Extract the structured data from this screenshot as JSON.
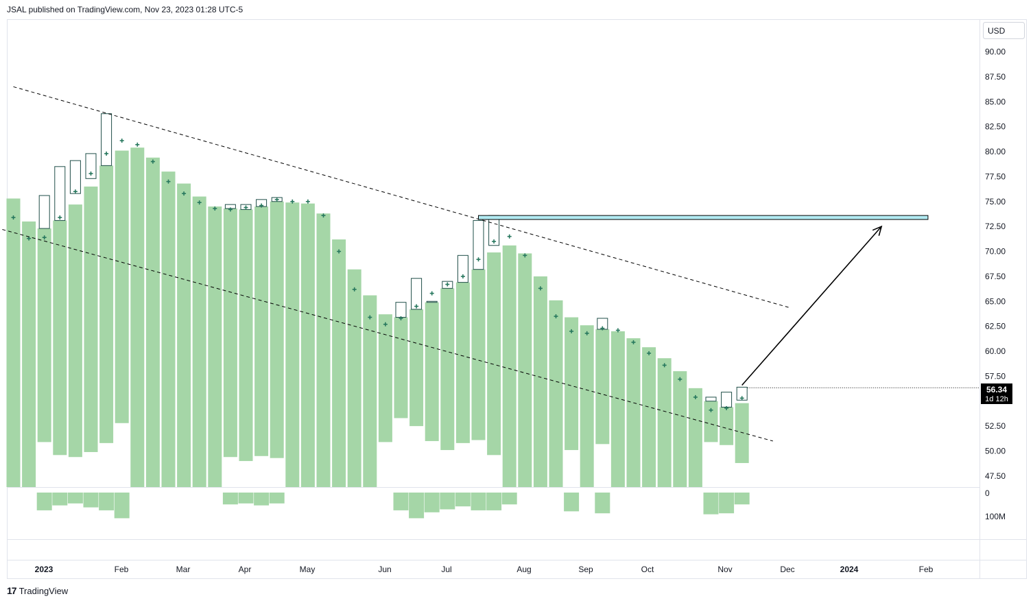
{
  "header": {
    "published": "JSAL published on TradingView.com, Nov 23, 2023 01:28 UTC-5"
  },
  "footer": {
    "logo_mark": "17",
    "logo_text": "TradingView"
  },
  "price_axis": {
    "currency": "USD",
    "ticks": [
      "90.00",
      "87.50",
      "85.00",
      "82.50",
      "80.00",
      "77.50",
      "75.00",
      "72.50",
      "70.00",
      "67.50",
      "65.00",
      "62.50",
      "60.00",
      "57.50",
      "55.00",
      "52.50",
      "50.00",
      "47.50"
    ],
    "last_price": "56.34",
    "countdown": "1d 12h"
  },
  "volume_axis": {
    "ticks": [
      "0",
      "100M"
    ]
  },
  "time_axis": {
    "labels": [
      "2023",
      "Feb",
      "Mar",
      "Apr",
      "May",
      "Jun",
      "Jul",
      "Aug",
      "Sep",
      "Oct",
      "Nov",
      "Dec",
      "2024",
      "Feb"
    ],
    "bold": [
      "2023",
      "2024"
    ]
  },
  "colors": {
    "bar": "#a5d6a7",
    "marker": "#26775d",
    "candle_outline": "#1e4d47",
    "zone_fill": "#b2ebf2",
    "line": "#000000"
  },
  "chart_data": {
    "type": "bar",
    "timeframe": "weekly",
    "ylim": [
      46.0,
      92.0
    ],
    "weeks": [
      {
        "date": "2023-01-02",
        "top": 75.3,
        "bottom": 46.0,
        "marker": 73.4,
        "vol": 0
      },
      {
        "date": "2023-01-09",
        "top": 73.0,
        "bottom": 46.0,
        "marker": 71.3,
        "vol": 0
      },
      {
        "date": "2023-01-16",
        "top": 72.3,
        "bottom": 50.9,
        "marker": 71.4,
        "vol": 18,
        "cHigh": 75.6,
        "cLow": 72.3
      },
      {
        "date": "2023-01-23",
        "top": 73.1,
        "bottom": 49.6,
        "marker": 73.4,
        "vol": 13,
        "cHigh": 78.5,
        "cLow": 73.1
      },
      {
        "date": "2023-01-30",
        "top": 74.7,
        "bottom": 49.4,
        "marker": 76.0,
        "vol": 11,
        "cHigh": 79.1,
        "cLow": 75.8
      },
      {
        "date": "2023-02-06",
        "top": 76.5,
        "bottom": 49.9,
        "marker": 77.8,
        "vol": 15,
        "cHigh": 79.8,
        "cLow": 77.3
      },
      {
        "date": "2023-02-13",
        "top": 78.6,
        "bottom": 50.8,
        "marker": 79.8,
        "vol": 18,
        "cHigh": 83.8,
        "cLow": 78.6
      },
      {
        "date": "2023-02-20",
        "top": 80.1,
        "bottom": 52.8,
        "marker": 81.1,
        "vol": 26
      },
      {
        "date": "2023-02-27",
        "top": 80.4,
        "bottom": 46.0,
        "marker": 80.7,
        "vol": 0
      },
      {
        "date": "2023-03-06",
        "top": 79.4,
        "bottom": 46.0,
        "marker": 79.0,
        "vol": 0
      },
      {
        "date": "2023-03-13",
        "top": 78.0,
        "bottom": 46.0,
        "marker": 77.0,
        "vol": 0
      },
      {
        "date": "2023-03-20",
        "top": 76.8,
        "bottom": 46.0,
        "marker": 75.8,
        "vol": 0
      },
      {
        "date": "2023-03-27",
        "top": 75.5,
        "bottom": 46.0,
        "marker": 74.9,
        "vol": 0
      },
      {
        "date": "2023-04-03",
        "top": 74.5,
        "bottom": 46.0,
        "marker": 74.3,
        "vol": 0
      },
      {
        "date": "2023-04-10",
        "top": 74.3,
        "bottom": 49.4,
        "marker": 74.2,
        "vol": 12,
        "cHigh": 74.7,
        "cLow": 74.3
      },
      {
        "date": "2023-04-17",
        "top": 74.2,
        "bottom": 49.0,
        "marker": 74.4,
        "vol": 11,
        "cHigh": 74.7,
        "cLow": 74.2
      },
      {
        "date": "2023-04-24",
        "top": 74.5,
        "bottom": 49.5,
        "marker": 74.6,
        "vol": 13,
        "cHigh": 75.2,
        "cLow": 74.5
      },
      {
        "date": "2023-05-01",
        "top": 75.0,
        "bottom": 49.3,
        "marker": 75.2,
        "vol": 11,
        "cHigh": 75.4,
        "cLow": 75.0
      },
      {
        "date": "2023-05-08",
        "top": 74.9,
        "bottom": 46.0,
        "marker": 75.0,
        "vol": 0
      },
      {
        "date": "2023-05-15",
        "top": 74.8,
        "bottom": 46.0,
        "marker": 75.0,
        "vol": 0
      },
      {
        "date": "2023-05-22",
        "top": 73.8,
        "bottom": 46.0,
        "marker": 73.6,
        "vol": 0
      },
      {
        "date": "2023-05-29",
        "top": 71.2,
        "bottom": 46.0,
        "marker": 70.0,
        "vol": 0
      },
      {
        "date": "2023-06-05",
        "top": 68.2,
        "bottom": 46.0,
        "marker": 66.2,
        "vol": 0
      },
      {
        "date": "2023-06-12",
        "top": 65.6,
        "bottom": 46.0,
        "marker": 63.4,
        "vol": 0
      },
      {
        "date": "2023-06-19",
        "top": 63.7,
        "bottom": 50.9,
        "marker": 62.7,
        "vol": 0
      },
      {
        "date": "2023-06-26",
        "top": 63.4,
        "bottom": 53.3,
        "marker": 63.3,
        "vol": 18,
        "cHigh": 64.9,
        "cLow": 63.4
      },
      {
        "date": "2023-07-03",
        "top": 64.2,
        "bottom": 52.5,
        "marker": 64.5,
        "vol": 26,
        "cHigh": 67.3,
        "cLow": 64.2
      },
      {
        "date": "2023-07-10",
        "top": 64.9,
        "bottom": 51.0,
        "marker": 65.8,
        "vol": 20,
        "cHigh": 65.0,
        "cLow": 64.9
      },
      {
        "date": "2023-07-17",
        "top": 66.3,
        "bottom": 50.1,
        "marker": 66.7,
        "vol": 17,
        "cHigh": 67.0,
        "cLow": 66.3
      },
      {
        "date": "2023-07-24",
        "top": 66.9,
        "bottom": 50.8,
        "marker": 67.5,
        "vol": 14,
        "cHigh": 69.6,
        "cLow": 66.9
      },
      {
        "date": "2023-07-31",
        "top": 68.2,
        "bottom": 51.1,
        "marker": 69.2,
        "vol": 18,
        "cHigh": 73.1,
        "cLow": 68.2
      },
      {
        "date": "2023-08-07",
        "top": 69.9,
        "bottom": 49.6,
        "marker": 71.0,
        "vol": 18,
        "cHigh": 73.6,
        "cLow": 70.6
      },
      {
        "date": "2023-08-14",
        "top": 70.6,
        "bottom": 46.0,
        "marker": 71.5,
        "vol": 12
      },
      {
        "date": "2023-08-21",
        "top": 69.8,
        "bottom": 46.0,
        "marker": 69.6,
        "vol": 0
      },
      {
        "date": "2023-08-28",
        "top": 67.5,
        "bottom": 46.0,
        "marker": 66.3,
        "vol": 0
      },
      {
        "date": "2023-09-04",
        "top": 65.1,
        "bottom": 46.0,
        "marker": 63.5,
        "vol": 0
      },
      {
        "date": "2023-09-11",
        "top": 63.4,
        "bottom": 50.1,
        "marker": 62.0,
        "vol": 19
      },
      {
        "date": "2023-09-18",
        "top": 62.6,
        "bottom": 46.0,
        "marker": 61.8,
        "vol": 0
      },
      {
        "date": "2023-09-25",
        "top": 62.2,
        "bottom": 50.7,
        "marker": 62.3,
        "vol": 21,
        "cHigh": 63.3,
        "cLow": 62.2
      },
      {
        "date": "2023-10-02",
        "top": 62.0,
        "bottom": 46.0,
        "marker": 62.1,
        "vol": 0
      },
      {
        "date": "2023-10-09",
        "top": 61.3,
        "bottom": 46.0,
        "marker": 60.9,
        "vol": 0
      },
      {
        "date": "2023-10-16",
        "top": 60.4,
        "bottom": 46.0,
        "marker": 59.8,
        "vol": 0
      },
      {
        "date": "2023-10-23",
        "top": 59.3,
        "bottom": 46.0,
        "marker": 58.6,
        "vol": 0
      },
      {
        "date": "2023-10-30",
        "top": 58.0,
        "bottom": 46.0,
        "marker": 57.2,
        "vol": 0
      },
      {
        "date": "2023-11-06",
        "top": 56.3,
        "bottom": 46.0,
        "marker": 55.4,
        "vol": 0
      },
      {
        "date": "2023-11-13",
        "top": 55.0,
        "bottom": 50.9,
        "marker": 54.1,
        "vol": 22,
        "cHigh": 55.4,
        "cLow": 55.0
      },
      {
        "date": "2023-11-20",
        "top": 54.4,
        "bottom": 50.6,
        "marker": 54.3,
        "vol": 21,
        "cHigh": 55.9,
        "cLow": 54.4
      },
      {
        "date": "2023-11-27",
        "top": 54.8,
        "bottom": 48.8,
        "marker": 55.3,
        "vol": 12,
        "cHigh": 56.4,
        "cLow": 55.1
      }
    ],
    "annotations": {
      "upper_trendline": [
        [
          "2023-01-02",
          86.5
        ],
        [
          "2023-12-18",
          64.4
        ]
      ],
      "lower_trendline": [
        [
          "2022-12-28",
          72.2
        ],
        [
          "2023-12-11",
          51.0
        ]
      ],
      "resistance_zone": {
        "from": "2023-07-31",
        "to": "2024-02-19",
        "low": 73.2,
        "high": 73.6
      },
      "arrow": [
        [
          "2023-11-27",
          56.6
        ],
        [
          "2024-01-29",
          72.5
        ]
      ],
      "last_price_line": 56.34
    }
  }
}
